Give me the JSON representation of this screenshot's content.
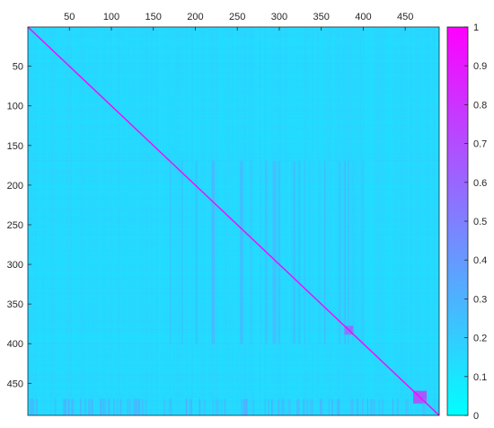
{
  "chart_data": {
    "type": "heatmap",
    "title": "",
    "xlabel": "",
    "ylabel": "",
    "matrix_size": 490,
    "x_axis_position": "top",
    "y_axis_direction": "reversed",
    "x_ticks": [
      "50",
      "100",
      "150",
      "200",
      "250",
      "300",
      "350",
      "400",
      "450"
    ],
    "y_ticks": [
      "50",
      "100",
      "150",
      "200",
      "250",
      "300",
      "350",
      "400",
      "450"
    ],
    "x_tick_values": [
      50,
      100,
      150,
      200,
      250,
      300,
      350,
      400,
      450
    ],
    "y_tick_values": [
      50,
      100,
      150,
      200,
      250,
      300,
      350,
      400,
      450
    ],
    "xlim": [
      0.5,
      490.5
    ],
    "ylim": [
      0.5,
      490.5
    ],
    "colormap": "cool",
    "colormap_low": "#00ffff",
    "colormap_high": "#ff00ff",
    "colorbar": {
      "location": "right",
      "limits": [
        0,
        1
      ],
      "ticks": [
        "0",
        "0.1",
        "0.2",
        "0.3",
        "0.4",
        "0.5",
        "0.6",
        "0.7",
        "0.8",
        "0.9",
        "1"
      ],
      "tick_values": [
        0,
        0.1,
        0.2,
        0.3,
        0.4,
        0.5,
        0.6,
        0.7,
        0.8,
        0.9,
        1
      ]
    },
    "background_value": 0.15,
    "diagonal_value": 1,
    "features": [
      {
        "description": "diagonal of ones",
        "range": [
          1,
          490
        ],
        "value": 1
      },
      {
        "description": "correlated block",
        "rows": [
          460,
          475
        ],
        "cols": [
          460,
          475
        ],
        "value": 0.65
      },
      {
        "description": "correlated block",
        "rows": [
          378,
          388
        ],
        "cols": [
          378,
          388
        ],
        "value": 0.55
      },
      {
        "description": "higher-correlation band",
        "rows": [
          470,
          490
        ],
        "cols": [
          1,
          490
        ],
        "value": 0.35
      },
      {
        "description": "higher-correlation region",
        "rows": [
          170,
          400
        ],
        "cols": [
          170,
          400
        ],
        "value": 0.25
      }
    ]
  }
}
